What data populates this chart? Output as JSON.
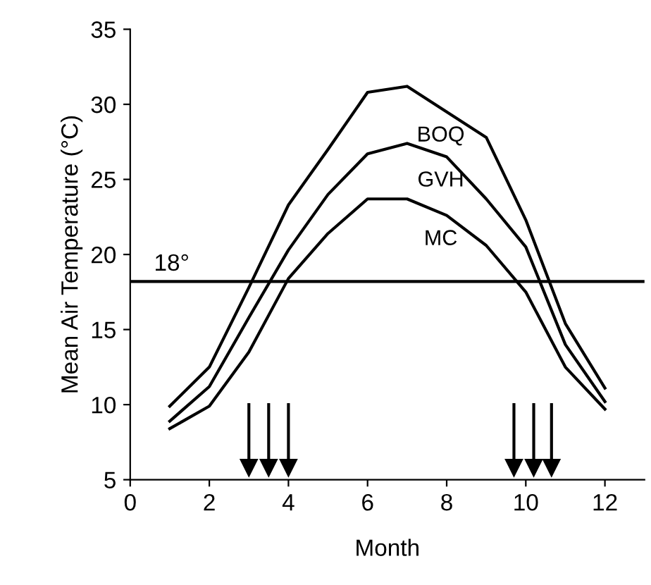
{
  "chart_data": {
    "type": "line",
    "xlabel": "Month",
    "ylabel": "Mean Air Temperature (°C)",
    "x": [
      1,
      2,
      3,
      4,
      5,
      6,
      7,
      8,
      9,
      10,
      11,
      12
    ],
    "series": [
      {
        "name": "BOQ",
        "color": "#000000",
        "values": [
          9.9,
          12.5,
          17.8,
          23.3,
          27.0,
          30.8,
          31.2,
          29.5,
          27.8,
          22.3,
          15.4,
          11.1
        ]
      },
      {
        "name": "GVH",
        "color": "#000000",
        "values": [
          8.9,
          11.2,
          15.8,
          20.3,
          24.0,
          26.7,
          27.4,
          26.5,
          23.7,
          20.5,
          14.0,
          10.2
        ]
      },
      {
        "name": "MC",
        "color": "#000000",
        "values": [
          8.4,
          9.9,
          13.5,
          18.4,
          21.4,
          23.7,
          23.7,
          22.6,
          20.6,
          17.5,
          12.5,
          9.7
        ]
      }
    ],
    "ref_lines": [
      {
        "axis": "y",
        "value": 18.2,
        "label": "18°",
        "color": "#000000"
      },
      {
        "axis": "x",
        "value": 3.0
      },
      {
        "axis": "x",
        "value": 3.5
      },
      {
        "axis": "x",
        "value": 4.0
      },
      {
        "axis": "x",
        "value": 9.7
      },
      {
        "axis": "x",
        "value": 10.2
      },
      {
        "axis": "x",
        "value": 10.65
      }
    ],
    "xlim": [
      0,
      13
    ],
    "ylim": [
      5,
      35
    ],
    "xticks": [
      0,
      2,
      4,
      6,
      8,
      10,
      12
    ],
    "yticks": [
      5,
      10,
      15,
      20,
      25,
      30,
      35
    ],
    "grid": false,
    "legend": false,
    "marker": "none",
    "line_style": "solid"
  }
}
